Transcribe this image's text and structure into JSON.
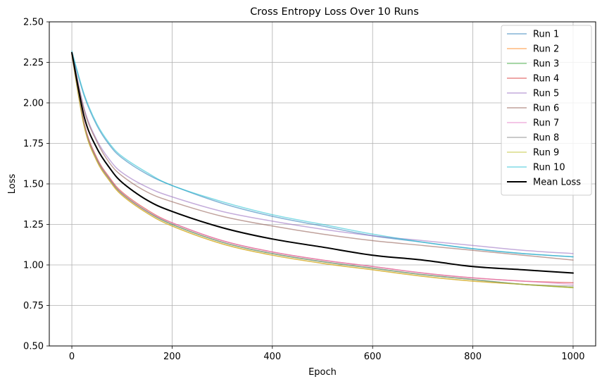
{
  "chart_data": {
    "type": "line",
    "title": "Cross Entropy Loss Over 10 Runs",
    "xlabel": "Epoch",
    "ylabel": "Loss",
    "xlim": [
      -45,
      1045
    ],
    "ylim": [
      0.5,
      2.5
    ],
    "xticks": [
      0,
      200,
      400,
      600,
      800,
      1000
    ],
    "yticks": [
      0.5,
      0.75,
      1.0,
      1.25,
      1.5,
      1.75,
      2.0,
      2.25,
      2.5
    ],
    "xtick_labels": [
      "0",
      "200",
      "400",
      "600",
      "800",
      "1000"
    ],
    "ytick_labels": [
      "0.50",
      "0.75",
      "1.00",
      "1.25",
      "1.50",
      "1.75",
      "2.00",
      "2.25",
      "2.50"
    ],
    "grid": true,
    "legend_position": "top-right",
    "x": [
      0,
      25,
      50,
      75,
      100,
      150,
      200,
      300,
      400,
      500,
      600,
      700,
      800,
      900,
      1000
    ],
    "series": [
      {
        "name": "Run 1",
        "color": "#1f77b4",
        "alpha": 0.55,
        "values": [
          2.31,
          2.04,
          1.86,
          1.74,
          1.66,
          1.56,
          1.49,
          1.38,
          1.3,
          1.24,
          1.18,
          1.14,
          1.1,
          1.07,
          1.05
        ]
      },
      {
        "name": "Run 2",
        "color": "#ff7f0e",
        "alpha": 0.55,
        "values": [
          2.3,
          1.85,
          1.64,
          1.52,
          1.43,
          1.32,
          1.24,
          1.13,
          1.06,
          1.01,
          0.97,
          0.93,
          0.9,
          0.88,
          0.86
        ]
      },
      {
        "name": "Run 3",
        "color": "#2ca02c",
        "alpha": 0.55,
        "values": [
          2.31,
          1.86,
          1.65,
          1.53,
          1.44,
          1.33,
          1.25,
          1.14,
          1.07,
          1.02,
          0.98,
          0.94,
          0.91,
          0.88,
          0.86
        ]
      },
      {
        "name": "Run 4",
        "color": "#d62728",
        "alpha": 0.55,
        "values": [
          2.3,
          1.87,
          1.66,
          1.54,
          1.45,
          1.34,
          1.26,
          1.15,
          1.08,
          1.03,
          0.99,
          0.95,
          0.92,
          0.9,
          0.89
        ]
      },
      {
        "name": "Run 5",
        "color": "#9467bd",
        "alpha": 0.55,
        "values": [
          2.31,
          1.96,
          1.77,
          1.65,
          1.57,
          1.48,
          1.42,
          1.33,
          1.27,
          1.22,
          1.18,
          1.15,
          1.12,
          1.09,
          1.07
        ]
      },
      {
        "name": "Run 6",
        "color": "#8c564b",
        "alpha": 0.55,
        "values": [
          2.31,
          1.95,
          1.76,
          1.63,
          1.55,
          1.45,
          1.39,
          1.3,
          1.24,
          1.19,
          1.15,
          1.12,
          1.09,
          1.06,
          1.03
        ]
      },
      {
        "name": "Run 7",
        "color": "#e377c2",
        "alpha": 0.55,
        "values": [
          2.3,
          1.86,
          1.65,
          1.53,
          1.44,
          1.33,
          1.26,
          1.15,
          1.08,
          1.03,
          0.99,
          0.95,
          0.92,
          0.9,
          0.88
        ]
      },
      {
        "name": "Run 8",
        "color": "#7f7f7f",
        "alpha": 0.55,
        "values": [
          2.3,
          1.86,
          1.65,
          1.53,
          1.44,
          1.33,
          1.25,
          1.14,
          1.07,
          1.02,
          0.98,
          0.94,
          0.91,
          0.88,
          0.87
        ]
      },
      {
        "name": "Run 9",
        "color": "#bcbd22",
        "alpha": 0.55,
        "values": [
          2.3,
          1.85,
          1.64,
          1.52,
          1.43,
          1.32,
          1.24,
          1.13,
          1.06,
          1.01,
          0.97,
          0.93,
          0.9,
          0.88,
          0.86
        ]
      },
      {
        "name": "Run 10",
        "color": "#17becf",
        "alpha": 0.55,
        "values": [
          2.32,
          2.05,
          1.87,
          1.75,
          1.67,
          1.57,
          1.49,
          1.39,
          1.31,
          1.25,
          1.19,
          1.14,
          1.1,
          1.07,
          1.05
        ]
      },
      {
        "name": "Mean Loss",
        "color": "#000000",
        "alpha": 1.0,
        "bold": true,
        "values": [
          2.31,
          1.91,
          1.72,
          1.6,
          1.51,
          1.4,
          1.33,
          1.23,
          1.16,
          1.11,
          1.06,
          1.03,
          0.99,
          0.97,
          0.95
        ]
      }
    ]
  }
}
